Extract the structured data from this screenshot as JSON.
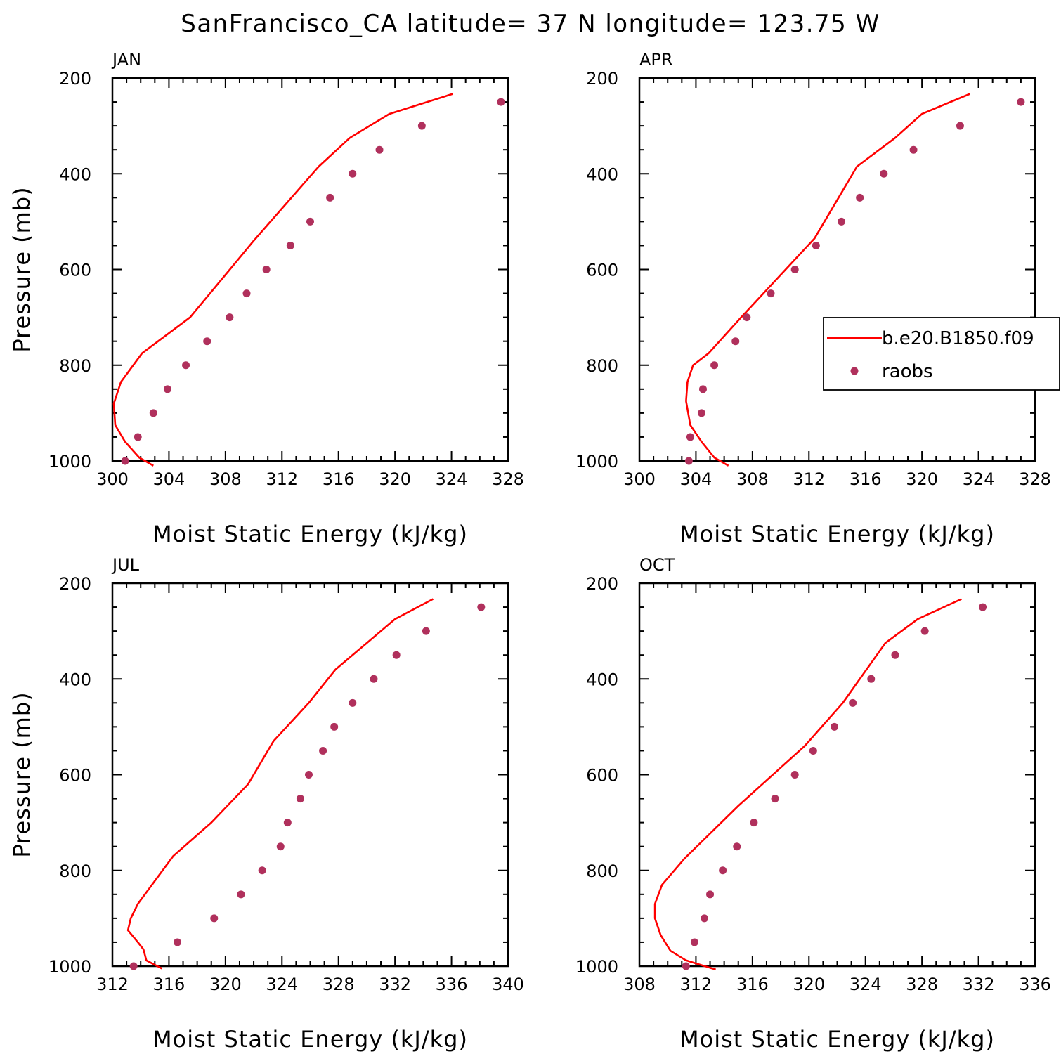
{
  "title": "SanFrancisco_CA  latitude= 37 N longitude= 123.75 W",
  "colors": {
    "model_line": "#ff0000",
    "obs_marker": "#b0305c",
    "axes": "#000000"
  },
  "legend": {
    "placement": "inside APR panel, right edge",
    "entries": [
      {
        "label": "b.e20.B1850.f09",
        "style": "line",
        "color": "#ff0000"
      },
      {
        "label": "raobs",
        "style": "marker",
        "color": "#b0305c"
      }
    ]
  },
  "chart_data": [
    {
      "type": "line",
      "panel_label": "JAN",
      "xlabel": "Moist Static Energy (kJ/kg)",
      "ylabel": "Pressure (mb)",
      "xlim": [
        300,
        328
      ],
      "ylim": [
        1000,
        200
      ],
      "y_inverted": true,
      "xticks": [
        "300",
        "304",
        "308",
        "312",
        "316",
        "320",
        "324",
        "328"
      ],
      "yticks": [
        "200",
        "400",
        "600",
        "800",
        "1000"
      ],
      "series": [
        {
          "name": "b.e20.B1850.f09",
          "kind": "line",
          "x": [
            302.9,
            301.9,
            300.9,
            300.2,
            300.1,
            300.6,
            302.1,
            305.5,
            310.0,
            314.6,
            316.8,
            319.6,
            324.1
          ],
          "y": [
            1010,
            993,
            960,
            925,
            880,
            835,
            775,
            700,
            540,
            385,
            325,
            275,
            233
          ]
        },
        {
          "name": "raobs",
          "kind": "scatter",
          "x": [
            300.9,
            301.8,
            302.9,
            303.9,
            305.2,
            306.7,
            308.3,
            309.5,
            310.9,
            312.6,
            314.0,
            315.4,
            317.0,
            318.9,
            321.9,
            327.5
          ],
          "y": [
            1000,
            950,
            900,
            850,
            800,
            750,
            700,
            650,
            600,
            550,
            500,
            450,
            400,
            350,
            300,
            250
          ]
        }
      ]
    },
    {
      "type": "line",
      "panel_label": "APR",
      "xlabel": "Moist Static Energy (kJ/kg)",
      "ylabel": "",
      "xlim": [
        300,
        328
      ],
      "ylim": [
        1000,
        200
      ],
      "y_inverted": true,
      "xticks": [
        "300",
        "304",
        "308",
        "312",
        "316",
        "320",
        "324",
        "328"
      ],
      "yticks": [
        "200",
        "400",
        "600",
        "800",
        "1000"
      ],
      "series": [
        {
          "name": "b.e20.B1850.f09",
          "kind": "line",
          "x": [
            306.3,
            305.3,
            304.4,
            303.6,
            303.3,
            303.4,
            303.8,
            304.9,
            307.2,
            312.4,
            315.4,
            318.1,
            320.0,
            323.4
          ],
          "y": [
            1010,
            993,
            960,
            925,
            875,
            835,
            800,
            775,
            700,
            535,
            385,
            325,
            275,
            233
          ]
        },
        {
          "name": "raobs",
          "kind": "scatter",
          "x": [
            303.5,
            303.6,
            304.4,
            304.5,
            305.3,
            306.8,
            307.6,
            309.3,
            311.0,
            312.5,
            314.3,
            315.6,
            317.3,
            319.4,
            322.7,
            327.0
          ],
          "y": [
            1000,
            950,
            900,
            850,
            800,
            750,
            700,
            650,
            600,
            550,
            500,
            450,
            400,
            350,
            300,
            250
          ]
        }
      ]
    },
    {
      "type": "line",
      "panel_label": "JUL",
      "xlabel": "Moist Static Energy (kJ/kg)",
      "ylabel": "Pressure (mb)",
      "xlim": [
        312,
        340
      ],
      "ylim": [
        1000,
        200
      ],
      "y_inverted": true,
      "xticks": [
        "312",
        "316",
        "320",
        "324",
        "328",
        "332",
        "336",
        "340"
      ],
      "yticks": [
        "200",
        "400",
        "600",
        "800",
        "1000"
      ],
      "series": [
        {
          "name": "b.e20.B1850.f09",
          "kind": "line",
          "x": [
            315.5,
            314.4,
            314.2,
            313.8,
            313.1,
            313.3,
            313.8,
            316.3,
            319.0,
            321.6,
            323.4,
            325.9,
            327.8,
            330.0,
            332.0,
            334.7
          ],
          "y": [
            1005,
            988,
            965,
            950,
            925,
            900,
            870,
            770,
            700,
            620,
            530,
            450,
            380,
            325,
            275,
            233
          ]
        },
        {
          "name": "raobs",
          "kind": "scatter",
          "x": [
            313.5,
            316.6,
            319.2,
            321.1,
            322.6,
            323.9,
            324.4,
            325.3,
            325.9,
            326.9,
            327.7,
            329.0,
            330.5,
            332.1,
            334.2,
            338.1
          ],
          "y": [
            1000,
            950,
            900,
            850,
            800,
            750,
            700,
            650,
            600,
            550,
            500,
            450,
            400,
            350,
            300,
            250
          ]
        }
      ]
    },
    {
      "type": "line",
      "panel_label": "OCT",
      "xlabel": "Moist Static Energy (kJ/kg)",
      "ylabel": "",
      "xlim": [
        308,
        336
      ],
      "ylim": [
        1000,
        200
      ],
      "y_inverted": true,
      "xticks": [
        "308",
        "312",
        "316",
        "320",
        "324",
        "328",
        "332",
        "336"
      ],
      "yticks": [
        "200",
        "400",
        "600",
        "800",
        "1000"
      ],
      "series": [
        {
          "name": "b.e20.B1850.f09",
          "kind": "line",
          "x": [
            313.4,
            311.3,
            310.2,
            309.5,
            309.1,
            309.1,
            309.6,
            311.2,
            315.0,
            319.7,
            322.4,
            325.4,
            327.7,
            330.8
          ],
          "y": [
            1007,
            988,
            968,
            935,
            900,
            870,
            830,
            775,
            665,
            540,
            450,
            325,
            275,
            233
          ]
        },
        {
          "name": "raobs",
          "kind": "scatter",
          "x": [
            311.3,
            311.9,
            312.6,
            313.0,
            313.9,
            314.9,
            316.1,
            317.6,
            319.0,
            320.3,
            321.8,
            323.1,
            324.4,
            326.1,
            328.2,
            332.3
          ],
          "y": [
            1000,
            950,
            900,
            850,
            800,
            750,
            700,
            650,
            600,
            550,
            500,
            450,
            400,
            350,
            300,
            250
          ]
        }
      ]
    }
  ]
}
